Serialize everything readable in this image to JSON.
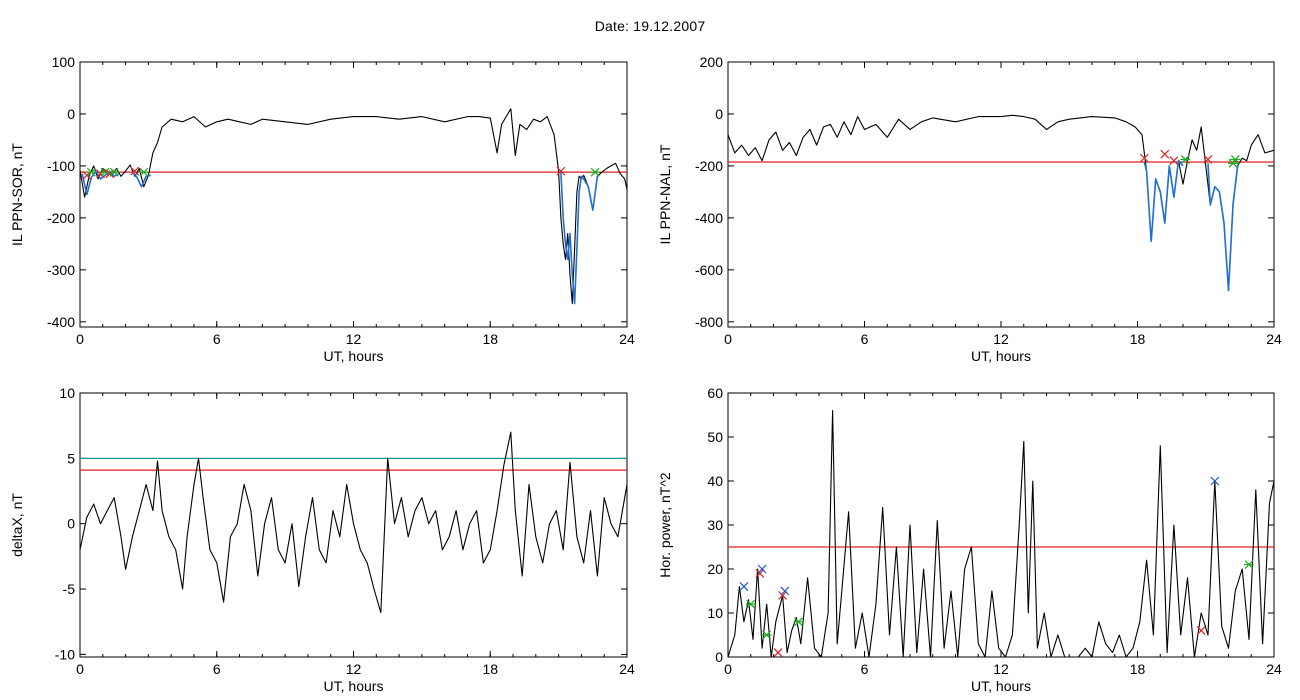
{
  "header": {
    "title": "Date:  19.12.2007"
  },
  "colors": {
    "trace": "#000000",
    "sub_trace": "#1f6fd6",
    "threshold": "#e02020",
    "threshold2": "#1f9a9a",
    "marker_start": "#22aa22",
    "marker_end": "#e02020",
    "marker_peak": "#2255cc"
  },
  "chart_data": [
    {
      "type": "line",
      "ylabel": "IL PPN-SOR, nT",
      "xlabel": "UT, hours",
      "xlim": [
        0,
        24
      ],
      "ylim": [
        -410,
        100
      ],
      "xticks": [
        0,
        6,
        12,
        18,
        24
      ],
      "yticks": [
        -400,
        -300,
        -200,
        -100,
        0,
        100
      ],
      "threshold": -112,
      "series": [
        {
          "x": [
            0,
            0.2,
            0.4,
            0.6,
            0.8,
            1.0,
            1.2,
            1.4,
            1.6,
            1.8,
            2.0,
            2.2,
            2.4,
            2.6,
            2.8,
            3.0,
            3.2,
            3.4,
            3.6,
            4.0,
            4.5,
            5.0,
            5.5,
            6.0,
            6.5,
            7.0,
            7.5,
            8.0,
            9.0,
            10.0,
            11.0,
            12.0,
            13.0,
            14.0,
            15.0,
            16.0,
            17.0,
            17.5,
            18.0,
            18.3,
            18.5,
            18.7,
            18.9,
            19.1,
            19.3,
            19.6,
            19.9,
            20.2,
            20.5,
            20.8,
            21.0,
            21.1,
            21.2,
            21.3,
            21.4,
            21.5,
            21.6,
            21.7,
            21.8,
            21.9,
            22.0,
            22.1,
            22.3,
            22.5,
            22.7,
            22.9,
            23.1,
            23.3,
            23.5,
            23.7,
            23.9,
            24.0
          ],
          "y": [
            -108,
            -160,
            -120,
            -100,
            -125,
            -105,
            -112,
            -118,
            -105,
            -120,
            -110,
            -98,
            -120,
            -105,
            -140,
            -118,
            -75,
            -55,
            -25,
            -10,
            -15,
            -5,
            -25,
            -15,
            -10,
            -15,
            -20,
            -10,
            -15,
            -20,
            -10,
            -5,
            -5,
            -10,
            -5,
            -15,
            -5,
            -5,
            -8,
            -75,
            -20,
            -5,
            10,
            -80,
            -20,
            -30,
            -10,
            -15,
            -5,
            -40,
            -110,
            -200,
            -250,
            -280,
            -230,
            -310,
            -365,
            -260,
            -150,
            -120,
            -125,
            -118,
            -140,
            -185,
            -120,
            -112,
            -105,
            -100,
            -95,
            -115,
            -125,
            -145
          ]
        }
      ],
      "segments": [
        {
          "x": [
            0.1,
            0.3,
            0.5,
            0.7,
            0.9,
            1.1,
            1.3,
            1.5,
            1.7
          ],
          "y": [
            -115,
            -155,
            -122,
            -110,
            -125,
            -118,
            -110,
            -120,
            -115
          ]
        },
        {
          "x": [
            2.3,
            2.5,
            2.7,
            2.9,
            3.1
          ],
          "y": [
            -112,
            -122,
            -140,
            -120,
            -118
          ]
        },
        {
          "x": [
            21.1,
            21.2,
            21.3,
            21.4,
            21.5,
            21.6,
            21.7,
            21.8,
            21.9,
            22.0,
            22.1,
            22.3,
            22.5,
            22.7
          ],
          "y": [
            -112,
            -200,
            -250,
            -280,
            -230,
            -310,
            -365,
            -260,
            -150,
            -120,
            -125,
            -140,
            -185,
            -120
          ]
        }
      ],
      "markers": [
        {
          "x": 0.3,
          "y": -118,
          "kind": "end"
        },
        {
          "x": 0.5,
          "y": -112,
          "kind": "start"
        },
        {
          "x": 0.9,
          "y": -115,
          "kind": "end"
        },
        {
          "x": 1.1,
          "y": -112,
          "kind": "start"
        },
        {
          "x": 1.3,
          "y": -115,
          "kind": "end"
        },
        {
          "x": 1.5,
          "y": -112,
          "kind": "start"
        },
        {
          "x": 2.4,
          "y": -110,
          "kind": "end"
        },
        {
          "x": 2.8,
          "y": -112,
          "kind": "start"
        },
        {
          "x": 21.1,
          "y": -110,
          "kind": "end"
        },
        {
          "x": 22.6,
          "y": -112,
          "kind": "start"
        }
      ]
    },
    {
      "type": "line",
      "ylabel": "IL PPN-NAL, nT",
      "xlabel": "UT, hours",
      "xlim": [
        0,
        24
      ],
      "ylim": [
        -820,
        200
      ],
      "xticks": [
        0,
        6,
        12,
        18,
        24
      ],
      "yticks": [
        -800,
        -600,
        -400,
        -200,
        0,
        200
      ],
      "threshold": -185,
      "series": [
        {
          "x": [
            0,
            0.3,
            0.6,
            0.9,
            1.2,
            1.5,
            1.8,
            2.1,
            2.4,
            2.7,
            3.0,
            3.3,
            3.6,
            3.9,
            4.2,
            4.5,
            4.8,
            5.1,
            5.4,
            5.7,
            6.0,
            6.5,
            7.0,
            7.5,
            8.0,
            8.5,
            9.0,
            10.0,
            11.0,
            12.0,
            12.5,
            13.0,
            13.5,
            14.0,
            14.5,
            15.0,
            16.0,
            17.0,
            17.5,
            17.9,
            18.2,
            18.4,
            18.6,
            18.8,
            19.0,
            19.2,
            19.4,
            19.6,
            19.8,
            20.0,
            20.2,
            20.4,
            20.6,
            20.8,
            21.0,
            21.2,
            21.4,
            21.6,
            21.8,
            22.0,
            22.2,
            22.4,
            22.6,
            22.8,
            23.0,
            23.3,
            23.6,
            24.0
          ],
          "y": [
            -80,
            -150,
            -120,
            -160,
            -130,
            -180,
            -100,
            -70,
            -140,
            -110,
            -160,
            -90,
            -60,
            -120,
            -50,
            -40,
            -90,
            -30,
            -80,
            -10,
            -60,
            -40,
            -90,
            -20,
            -60,
            -30,
            -15,
            -30,
            -10,
            -10,
            -5,
            -10,
            -20,
            -60,
            -30,
            -20,
            -10,
            -15,
            -30,
            -50,
            -80,
            -220,
            -490,
            -250,
            -300,
            -420,
            -200,
            -320,
            -180,
            -270,
            -180,
            -100,
            -140,
            -50,
            -200,
            -350,
            -280,
            -300,
            -420,
            -680,
            -350,
            -200,
            -170,
            -180,
            -120,
            -80,
            -150,
            -140
          ]
        }
      ],
      "segments": [
        {
          "x": [
            18.3,
            18.4,
            18.6,
            18.8,
            19.0,
            19.2,
            19.4,
            19.6,
            19.8,
            20.0
          ],
          "y": [
            -185,
            -220,
            -490,
            -250,
            -300,
            -420,
            -200,
            -320,
            -180,
            -200
          ]
        },
        {
          "x": [
            21.1,
            21.2,
            21.4,
            21.6,
            21.8,
            22.0,
            22.2,
            22.4
          ],
          "y": [
            -190,
            -350,
            -280,
            -300,
            -420,
            -680,
            -350,
            -200
          ]
        }
      ],
      "markers": [
        {
          "x": 18.3,
          "y": -170,
          "kind": "end"
        },
        {
          "x": 19.2,
          "y": -155,
          "kind": "end"
        },
        {
          "x": 19.6,
          "y": -180,
          "kind": "end"
        },
        {
          "x": 20.1,
          "y": -175,
          "kind": "start"
        },
        {
          "x": 21.1,
          "y": -175,
          "kind": "end"
        },
        {
          "x": 22.2,
          "y": -190,
          "kind": "start"
        },
        {
          "x": 22.3,
          "y": -175,
          "kind": "start"
        }
      ]
    },
    {
      "type": "line",
      "ylabel": "deltaX, nT",
      "xlabel": "UT, hours",
      "xlim": [
        0,
        24
      ],
      "ylim": [
        -10.2,
        10
      ],
      "xticks": [
        0,
        6,
        12,
        18,
        24
      ],
      "yticks": [
        -10,
        -5,
        0,
        5,
        10
      ],
      "threshold": 4.1,
      "threshold2": 5.0,
      "series": [
        {
          "x": [
            0,
            0.3,
            0.6,
            0.9,
            1.2,
            1.5,
            1.8,
            2.0,
            2.3,
            2.6,
            2.9,
            3.2,
            3.4,
            3.6,
            3.9,
            4.2,
            4.5,
            4.7,
            5.0,
            5.2,
            5.4,
            5.7,
            6.0,
            6.3,
            6.6,
            6.9,
            7.2,
            7.5,
            7.8,
            8.1,
            8.4,
            8.7,
            9.0,
            9.3,
            9.6,
            9.9,
            10.2,
            10.5,
            10.8,
            11.1,
            11.4,
            11.7,
            12.0,
            12.3,
            12.6,
            12.9,
            13.2,
            13.5,
            13.8,
            14.1,
            14.4,
            14.7,
            15.0,
            15.3,
            15.6,
            15.9,
            16.2,
            16.5,
            16.8,
            17.1,
            17.4,
            17.7,
            18.0,
            18.3,
            18.6,
            18.9,
            19.1,
            19.4,
            19.7,
            20.0,
            20.3,
            20.6,
            20.9,
            21.2,
            21.5,
            21.8,
            22.1,
            22.4,
            22.7,
            23.0,
            23.3,
            23.6,
            24.0
          ],
          "y": [
            -2,
            0.5,
            1.5,
            0,
            1,
            2,
            -1,
            -3.5,
            -1,
            1,
            3,
            1,
            4.8,
            1,
            -1,
            -2,
            -5,
            -1,
            3,
            5,
            2,
            -2,
            -3,
            -6,
            -1,
            0,
            3,
            1,
            -4,
            0,
            2,
            -2,
            -3,
            0,
            -4.8,
            -1,
            2,
            -2,
            -3,
            1,
            -1,
            3,
            0,
            -2,
            -3,
            -5,
            -6.8,
            5,
            0,
            2,
            -1,
            1,
            2,
            0,
            1,
            -2,
            -1,
            1,
            -2,
            0,
            1,
            -3,
            -2,
            1,
            4.5,
            7,
            1,
            -4,
            3,
            -1,
            -3,
            0,
            1,
            -2,
            4.7,
            -1,
            -3,
            1,
            -4,
            2,
            0,
            -1,
            3
          ]
        }
      ],
      "markers": []
    },
    {
      "type": "line",
      "ylabel": "Hor. power, nT^2",
      "xlabel": "UT, hours",
      "xlim": [
        0,
        24
      ],
      "ylim": [
        0,
        60
      ],
      "xticks": [
        0,
        6,
        12,
        18,
        24
      ],
      "yticks": [
        0,
        10,
        20,
        30,
        40,
        50,
        60
      ],
      "threshold": 25,
      "series": [
        {
          "x": [
            0,
            0.3,
            0.5,
            0.7,
            0.9,
            1.1,
            1.3,
            1.5,
            1.7,
            1.9,
            2.1,
            2.4,
            2.6,
            2.8,
            3.0,
            3.2,
            3.5,
            3.8,
            4.1,
            4.4,
            4.6,
            4.8,
            5.0,
            5.3,
            5.6,
            5.9,
            6.2,
            6.5,
            6.8,
            7.1,
            7.4,
            7.7,
            8.0,
            8.3,
            8.6,
            8.9,
            9.2,
            9.5,
            9.8,
            10.1,
            10.4,
            10.7,
            11.0,
            11.3,
            11.6,
            11.9,
            12.2,
            12.5,
            12.8,
            13.0,
            13.2,
            13.4,
            13.6,
            13.9,
            14.2,
            14.5,
            14.8,
            15.1,
            15.4,
            15.7,
            16.0,
            16.3,
            16.6,
            16.9,
            17.2,
            17.5,
            17.8,
            18.1,
            18.4,
            18.7,
            19.0,
            19.3,
            19.6,
            19.9,
            20.2,
            20.5,
            20.8,
            21.1,
            21.4,
            21.7,
            22.0,
            22.3,
            22.6,
            22.9,
            23.2,
            23.5,
            23.8,
            24.0
          ],
          "y": [
            0,
            5,
            16,
            8,
            13,
            4,
            20,
            2,
            12,
            0,
            8,
            14,
            1,
            6,
            9,
            3,
            18,
            2,
            0,
            10,
            56,
            3,
            15,
            33,
            2,
            10,
            0,
            12,
            34,
            5,
            25,
            0,
            30,
            1,
            20,
            0,
            31,
            2,
            15,
            0,
            20,
            25,
            3,
            0,
            15,
            2,
            0,
            5,
            30,
            49,
            10,
            40,
            2,
            10,
            0,
            5,
            0,
            0,
            0,
            2,
            0,
            8,
            3,
            1,
            5,
            0,
            2,
            8,
            22,
            5,
            48,
            1,
            30,
            5,
            18,
            0,
            10,
            5,
            40,
            7,
            2,
            15,
            20,
            4,
            38,
            3,
            35,
            40
          ]
        }
      ],
      "markers": [
        {
          "x": 0.7,
          "y": 16,
          "kind": "peak"
        },
        {
          "x": 1.0,
          "y": 12,
          "kind": "start"
        },
        {
          "x": 1.4,
          "y": 19,
          "kind": "end"
        },
        {
          "x": 1.5,
          "y": 20,
          "kind": "peak"
        },
        {
          "x": 1.7,
          "y": 5,
          "kind": "start"
        },
        {
          "x": 2.4,
          "y": 14,
          "kind": "end"
        },
        {
          "x": 2.5,
          "y": 15,
          "kind": "peak"
        },
        {
          "x": 2.2,
          "y": 1,
          "kind": "end"
        },
        {
          "x": 3.1,
          "y": 8,
          "kind": "start"
        },
        {
          "x": 20.8,
          "y": 6,
          "kind": "end"
        },
        {
          "x": 21.4,
          "y": 40,
          "kind": "peak"
        },
        {
          "x": 22.9,
          "y": 21,
          "kind": "start"
        }
      ]
    }
  ]
}
